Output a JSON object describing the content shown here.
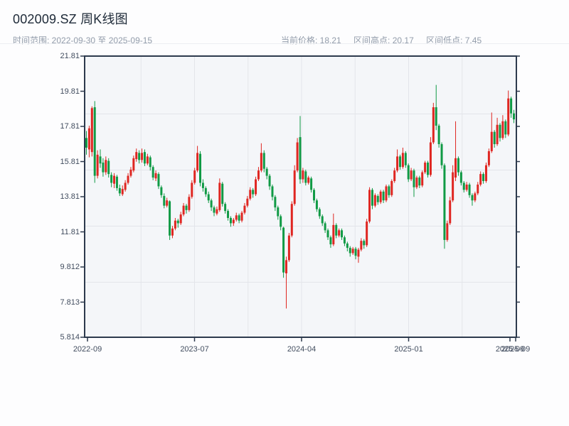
{
  "header": {
    "title": "002009.SZ 周K线图",
    "subtitle_left": "时间范围: 2022-09-30 至 2025-09-15",
    "stats": [
      {
        "text": "当前价格: 18.21"
      },
      {
        "text": "区间高点: 20.17"
      },
      {
        "text": "区间低点: 7.45"
      }
    ]
  },
  "chart_data": {
    "type": "candlestick",
    "symbol": "002009.SZ",
    "interval": "weekly",
    "title": "002009.SZ 周K线图",
    "date_range": {
      "start": "2022-09-30",
      "end": "2025-09-15"
    },
    "current_price": 18.21,
    "range_high": 20.17,
    "range_low": 7.45,
    "legend": "none",
    "grid": true,
    "y_axis": {
      "min": 5.814,
      "max": 21.81,
      "tick_values": [
        21.81,
        19.81,
        17.81,
        15.81,
        13.81,
        11.81,
        9.812,
        7.813,
        5.814
      ],
      "tick_labels": [
        "21.81",
        "19.81",
        "17.81",
        "15.81",
        "13.81",
        "11.81",
        "9.812",
        "7.813",
        "5.814"
      ]
    },
    "x_axis": {
      "tick_labels": [
        "2022-09",
        "2023-07",
        "2024-04",
        "2025-01",
        "2025-09",
        "2025-09"
      ]
    },
    "colors": {
      "up": "#df2621",
      "down": "#109a45"
    },
    "candles_format": [
      "open",
      "high",
      "low",
      "close"
    ],
    "candles": [
      [
        17.15,
        17.55,
        16.2,
        16.6
      ],
      [
        16.5,
        17.85,
        16.05,
        17.7
      ],
      [
        16.35,
        18.95,
        16.1,
        18.85
      ],
      [
        18.9,
        19.25,
        14.6,
        15.0
      ],
      [
        15.0,
        16.45,
        14.85,
        16.2
      ],
      [
        16.1,
        16.5,
        15.45,
        15.7
      ],
      [
        15.75,
        16.0,
        14.95,
        15.2
      ],
      [
        15.2,
        16.1,
        15.05,
        15.9
      ],
      [
        15.85,
        16.0,
        14.9,
        15.1
      ],
      [
        15.05,
        15.2,
        14.35,
        14.6
      ],
      [
        14.55,
        15.15,
        14.3,
        15.0
      ],
      [
        14.95,
        15.05,
        14.15,
        14.3
      ],
      [
        14.3,
        14.5,
        13.85,
        14.0
      ],
      [
        13.95,
        14.45,
        13.85,
        14.25
      ],
      [
        14.2,
        14.75,
        14.1,
        14.6
      ],
      [
        14.6,
        15.15,
        14.5,
        15.0
      ],
      [
        15.0,
        15.5,
        14.9,
        15.35
      ],
      [
        15.3,
        16.15,
        15.2,
        16.0
      ],
      [
        15.95,
        16.55,
        15.8,
        16.35
      ],
      [
        16.3,
        16.45,
        15.7,
        15.9
      ],
      [
        15.9,
        16.55,
        15.75,
        16.3
      ],
      [
        16.35,
        16.5,
        15.55,
        15.7
      ],
      [
        15.7,
        16.25,
        15.6,
        16.1
      ],
      [
        16.05,
        16.15,
        15.3,
        15.5
      ],
      [
        15.5,
        15.6,
        14.75,
        14.9
      ],
      [
        14.85,
        15.3,
        14.7,
        15.15
      ],
      [
        15.1,
        15.2,
        14.25,
        14.4
      ],
      [
        14.35,
        14.45,
        13.75,
        13.9
      ],
      [
        13.85,
        14.0,
        13.15,
        13.3
      ],
      [
        13.3,
        13.75,
        13.2,
        13.6
      ],
      [
        13.55,
        13.6,
        11.35,
        11.6
      ],
      [
        11.6,
        12.15,
        11.45,
        12.0
      ],
      [
        12.0,
        12.6,
        11.9,
        12.45
      ],
      [
        12.45,
        12.55,
        12.05,
        12.3
      ],
      [
        12.3,
        12.95,
        12.2,
        12.8
      ],
      [
        12.8,
        13.45,
        12.7,
        13.3
      ],
      [
        13.3,
        13.4,
        12.85,
        13.05
      ],
      [
        13.05,
        13.95,
        12.95,
        13.8
      ],
      [
        13.8,
        14.75,
        13.7,
        14.6
      ],
      [
        14.6,
        15.45,
        14.5,
        15.3
      ],
      [
        15.3,
        16.7,
        15.2,
        16.3
      ],
      [
        16.25,
        16.4,
        14.4,
        14.6
      ],
      [
        14.6,
        14.8,
        14.1,
        14.3
      ],
      [
        14.3,
        14.4,
        13.8,
        13.95
      ],
      [
        13.95,
        14.1,
        13.45,
        13.6
      ],
      [
        13.6,
        13.7,
        13.0,
        13.2
      ],
      [
        13.2,
        13.3,
        12.7,
        12.9
      ],
      [
        12.85,
        13.25,
        12.75,
        13.1
      ],
      [
        13.05,
        14.85,
        12.95,
        14.6
      ],
      [
        14.55,
        14.65,
        13.25,
        13.4
      ],
      [
        13.4,
        13.5,
        12.85,
        13.0
      ],
      [
        13.0,
        13.1,
        12.45,
        12.6
      ],
      [
        12.6,
        12.7,
        12.1,
        12.3
      ],
      [
        12.3,
        12.6,
        12.15,
        12.5
      ],
      [
        12.5,
        12.9,
        12.4,
        12.75
      ],
      [
        12.75,
        12.85,
        12.3,
        12.45
      ],
      [
        12.45,
        13.0,
        12.35,
        12.9
      ],
      [
        12.9,
        13.45,
        12.8,
        13.3
      ],
      [
        13.3,
        13.85,
        13.2,
        13.7
      ],
      [
        13.7,
        14.35,
        13.6,
        14.2
      ],
      [
        14.2,
        14.3,
        13.75,
        13.95
      ],
      [
        13.95,
        14.95,
        13.85,
        14.8
      ],
      [
        14.8,
        15.5,
        14.7,
        15.3
      ],
      [
        15.3,
        16.85,
        15.2,
        16.3
      ],
      [
        16.3,
        16.45,
        15.2,
        15.4
      ],
      [
        15.4,
        15.5,
        14.8,
        15.0
      ],
      [
        15.0,
        15.1,
        14.2,
        14.4
      ],
      [
        14.4,
        14.5,
        13.6,
        13.8
      ],
      [
        13.8,
        13.9,
        13.0,
        13.2
      ],
      [
        13.2,
        13.3,
        12.5,
        12.7
      ],
      [
        12.7,
        12.8,
        11.9,
        12.1
      ],
      [
        12.05,
        12.1,
        9.2,
        9.5
      ],
      [
        9.45,
        10.4,
        7.45,
        10.2
      ],
      [
        10.2,
        11.75,
        10.1,
        11.6
      ],
      [
        11.6,
        13.55,
        11.5,
        13.4
      ],
      [
        13.4,
        15.6,
        13.3,
        15.3
      ],
      [
        15.3,
        17.15,
        15.2,
        16.9
      ],
      [
        17.2,
        18.4,
        14.55,
        14.8
      ],
      [
        14.8,
        15.45,
        14.6,
        15.3
      ],
      [
        15.25,
        15.35,
        14.45,
        14.6
      ],
      [
        14.6,
        15.0,
        14.5,
        14.9
      ],
      [
        14.85,
        14.95,
        14.05,
        14.2
      ],
      [
        14.2,
        14.3,
        13.45,
        13.6
      ],
      [
        13.6,
        13.7,
        12.95,
        13.1
      ],
      [
        13.1,
        13.2,
        12.55,
        12.7
      ],
      [
        12.7,
        12.8,
        12.15,
        12.3
      ],
      [
        12.3,
        12.4,
        11.75,
        11.9
      ],
      [
        11.9,
        12.0,
        11.35,
        11.5
      ],
      [
        11.5,
        11.6,
        10.9,
        11.1
      ],
      [
        11.1,
        12.85,
        11.0,
        12.2
      ],
      [
        12.2,
        12.3,
        11.45,
        11.6
      ],
      [
        11.6,
        12.0,
        11.5,
        11.9
      ],
      [
        11.9,
        12.0,
        11.35,
        11.5
      ],
      [
        11.5,
        11.6,
        11.0,
        11.15
      ],
      [
        11.15,
        11.25,
        10.7,
        10.9
      ],
      [
        10.9,
        11.0,
        10.4,
        10.6
      ],
      [
        10.6,
        10.95,
        10.5,
        10.85
      ],
      [
        10.85,
        10.95,
        10.25,
        10.45
      ],
      [
        10.4,
        10.9,
        10.05,
        10.8
      ],
      [
        10.8,
        11.45,
        10.7,
        11.3
      ],
      [
        11.3,
        11.4,
        10.85,
        11.05
      ],
      [
        11.05,
        12.55,
        10.95,
        12.4
      ],
      [
        12.4,
        14.35,
        12.3,
        14.2
      ],
      [
        14.2,
        14.3,
        13.1,
        13.3
      ],
      [
        13.3,
        14.0,
        13.2,
        13.9
      ],
      [
        13.85,
        13.95,
        13.35,
        13.5
      ],
      [
        13.5,
        14.2,
        13.4,
        14.1
      ],
      [
        14.1,
        14.2,
        13.45,
        13.6
      ],
      [
        13.6,
        14.5,
        13.5,
        14.4
      ],
      [
        14.4,
        14.5,
        13.75,
        13.9
      ],
      [
        13.9,
        14.8,
        13.8,
        14.7
      ],
      [
        14.7,
        15.45,
        14.6,
        15.3
      ],
      [
        15.3,
        16.5,
        15.2,
        16.1
      ],
      [
        16.1,
        16.2,
        15.35,
        15.5
      ],
      [
        15.5,
        16.6,
        15.4,
        16.3
      ],
      [
        16.3,
        16.4,
        15.45,
        15.6
      ],
      [
        15.6,
        15.7,
        14.65,
        14.8
      ],
      [
        14.8,
        15.45,
        14.7,
        15.3
      ],
      [
        15.3,
        15.4,
        13.8,
        14.35
      ],
      [
        14.35,
        15.0,
        14.25,
        14.9
      ],
      [
        14.9,
        15.0,
        14.3,
        14.45
      ],
      [
        14.45,
        15.3,
        14.35,
        15.2
      ],
      [
        15.2,
        15.85,
        15.1,
        15.75
      ],
      [
        15.75,
        15.85,
        14.9,
        15.05
      ],
      [
        15.05,
        17.2,
        14.95,
        16.9
      ],
      [
        16.9,
        19.15,
        16.8,
        18.9
      ],
      [
        18.9,
        20.17,
        17.6,
        17.85
      ],
      [
        17.85,
        17.95,
        16.6,
        16.8
      ],
      [
        16.8,
        16.9,
        15.4,
        15.6
      ],
      [
        15.6,
        15.7,
        10.85,
        11.35
      ],
      [
        11.35,
        12.45,
        11.25,
        12.3
      ],
      [
        12.3,
        13.8,
        12.2,
        13.6
      ],
      [
        13.6,
        15.6,
        13.5,
        15.2
      ],
      [
        14.9,
        18.1,
        14.7,
        16.0
      ],
      [
        16.0,
        16.1,
        15.0,
        15.2
      ],
      [
        15.2,
        15.3,
        14.45,
        14.6
      ],
      [
        14.6,
        14.7,
        14.05,
        14.2
      ],
      [
        14.2,
        14.65,
        14.1,
        14.5
      ],
      [
        14.5,
        14.6,
        13.75,
        13.9
      ],
      [
        13.9,
        14.0,
        13.3,
        13.6
      ],
      [
        13.6,
        14.1,
        13.5,
        14.0
      ],
      [
        14.0,
        14.65,
        13.9,
        14.5
      ],
      [
        14.5,
        15.25,
        14.4,
        15.1
      ],
      [
        15.1,
        15.2,
        14.55,
        14.7
      ],
      [
        14.7,
        15.75,
        14.6,
        15.6
      ],
      [
        15.6,
        16.55,
        15.5,
        16.4
      ],
      [
        16.4,
        18.6,
        16.3,
        17.5
      ],
      [
        17.5,
        17.6,
        16.6,
        16.8
      ],
      [
        16.8,
        18.3,
        16.7,
        17.9
      ],
      [
        17.9,
        18.0,
        16.95,
        17.15
      ],
      [
        17.15,
        18.45,
        17.05,
        18.1
      ],
      [
        18.1,
        18.2,
        17.15,
        17.35
      ],
      [
        17.35,
        19.85,
        17.25,
        19.4
      ],
      [
        19.4,
        19.5,
        18.3,
        18.55
      ],
      [
        18.55,
        18.75,
        18.0,
        18.21
      ]
    ]
  }
}
